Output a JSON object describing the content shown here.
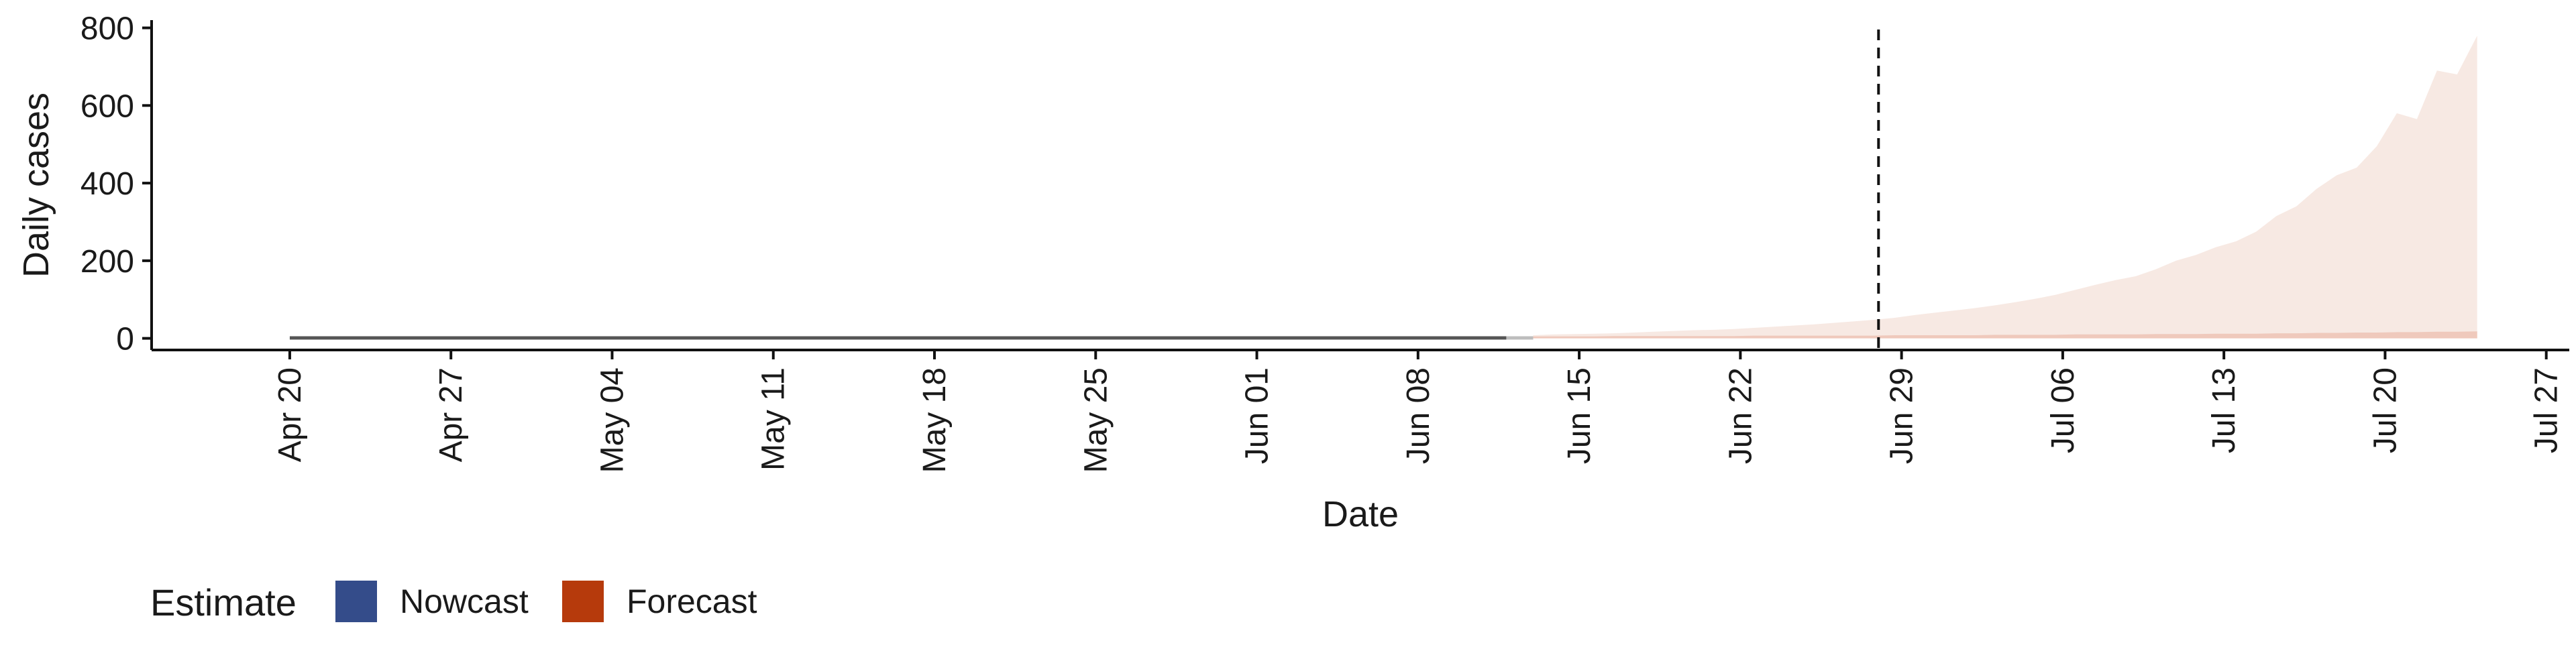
{
  "chart_data": {
    "type": "area",
    "title": "",
    "xlabel": "Date",
    "ylabel": "Daily cases",
    "ylim": [
      -30,
      820
    ],
    "y_ticks": [
      0,
      200,
      400,
      600,
      800
    ],
    "y_tick_labels": [
      "0",
      "200",
      "400",
      "600",
      "800"
    ],
    "x_start": "2020-04-14",
    "x_end": "2020-07-28",
    "x_ticks": [
      {
        "date": "2020-04-20",
        "label": "Apr 20"
      },
      {
        "date": "2020-04-27",
        "label": "Apr 27"
      },
      {
        "date": "2020-05-04",
        "label": "May 04"
      },
      {
        "date": "2020-05-11",
        "label": "May 11"
      },
      {
        "date": "2020-05-18",
        "label": "May 18"
      },
      {
        "date": "2020-05-25",
        "label": "May 25"
      },
      {
        "date": "2020-06-01",
        "label": "Jun 01"
      },
      {
        "date": "2020-06-08",
        "label": "Jun 08"
      },
      {
        "date": "2020-06-15",
        "label": "Jun 15"
      },
      {
        "date": "2020-06-22",
        "label": "Jun 22"
      },
      {
        "date": "2020-06-29",
        "label": "Jun 29"
      },
      {
        "date": "2020-07-06",
        "label": "Jul 06"
      },
      {
        "date": "2020-07-13",
        "label": "Jul 13"
      },
      {
        "date": "2020-07-20",
        "label": "Jul 20"
      },
      {
        "date": "2020-07-27",
        "label": "Jul 27"
      }
    ],
    "vline_date": "2020-06-28",
    "observed_start": "2020-04-20",
    "observed_end": "2020-06-13",
    "observed_value": 1,
    "forecast": {
      "start": "2020-06-13",
      "end": "2020-07-24",
      "upper_mid": [
        8,
        10,
        11,
        12,
        13,
        15,
        17,
        19,
        21,
        22,
        24,
        27,
        30,
        33,
        36,
        40,
        44,
        48,
        53,
        60,
        66,
        72,
        78,
        85,
        93,
        102,
        112,
        125,
        138,
        150,
        160,
        178,
        200,
        215,
        235,
        250,
        275,
        315,
        340,
        385,
        420,
        440,
        495,
        580,
        565,
        690,
        680,
        780
      ],
      "upper_inner": [
        5,
        5,
        5,
        5,
        6,
        6,
        6,
        6,
        6,
        6,
        6,
        7,
        7,
        7,
        7,
        7,
        7,
        7,
        8,
        8,
        8,
        8,
        8,
        9,
        9,
        9,
        9,
        10,
        10,
        10,
        10,
        11,
        11,
        11,
        12,
        12,
        12,
        13,
        13,
        14,
        14,
        15,
        15,
        16,
        16,
        17,
        17,
        18
      ],
      "lower": [
        0,
        0,
        0,
        0,
        0,
        0,
        0,
        0,
        0,
        0,
        0,
        0,
        0,
        0,
        0,
        0,
        0,
        0,
        0,
        0,
        0,
        0,
        0,
        0,
        0,
        0,
        0,
        0,
        0,
        0,
        0,
        0,
        0,
        0,
        0,
        0,
        0,
        0,
        0,
        0,
        0,
        0,
        0,
        0,
        0,
        0,
        0,
        0
      ]
    },
    "legend": {
      "position": "bottom-left",
      "title": "Estimate",
      "items": [
        {
          "label": "Nowcast",
          "color": "#344C8A"
        },
        {
          "label": "Forecast",
          "color": "#B63A0C"
        }
      ]
    },
    "colors": {
      "forecast_band_outer": "#F7E9E3",
      "forecast_band_inner": "#EFC9BC",
      "observed_line": "#555555",
      "vline": "#111111",
      "axis": "#111111"
    }
  }
}
